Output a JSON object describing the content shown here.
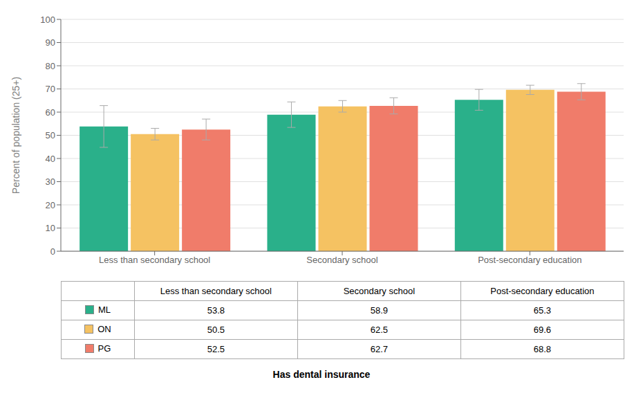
{
  "chart_data": {
    "type": "bar",
    "categories": [
      "Less than secondary school",
      "Secondary school",
      "Post-secondary education"
    ],
    "series": [
      {
        "name": "ML",
        "color": "#2ab08a",
        "values": [
          53.8,
          58.9,
          65.3
        ],
        "errors": [
          9.0,
          5.5,
          4.5
        ]
      },
      {
        "name": "ON",
        "color": "#f5c262",
        "values": [
          50.5,
          62.5,
          69.6
        ],
        "errors": [
          2.5,
          2.5,
          2.0
        ]
      },
      {
        "name": "PG",
        "color": "#f07c6a",
        "values": [
          52.5,
          62.7,
          68.8
        ],
        "errors": [
          4.5,
          3.5,
          3.5
        ]
      }
    ],
    "y_label": "Percent of population (25+)",
    "x_label": "Has dental insurance",
    "ylim": [
      0,
      100
    ],
    "yticks": [
      0,
      10,
      20,
      30,
      40,
      50,
      60,
      70,
      80,
      90,
      100
    ],
    "grid": true,
    "legend": "bottom"
  }
}
